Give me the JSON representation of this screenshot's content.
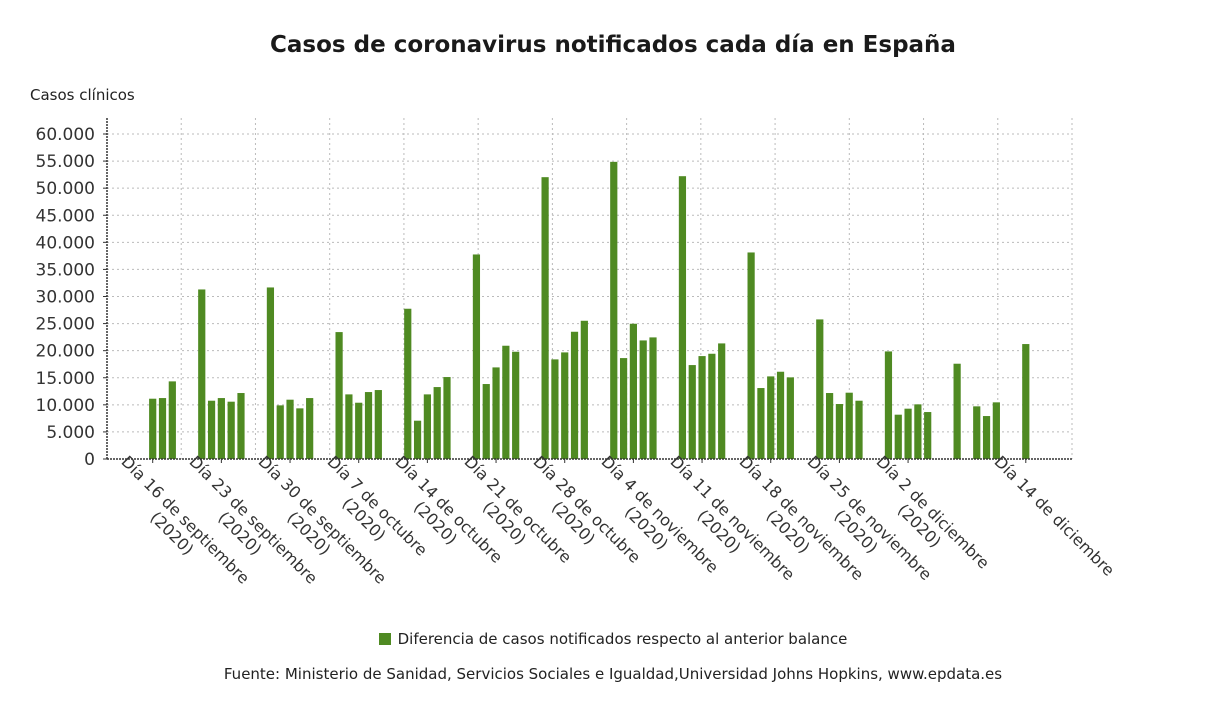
{
  "chart_data": {
    "type": "bar",
    "title": "Casos de coronavirus notificados cada día en España",
    "ylabel": "Casos clínicos",
    "xlabel": "",
    "ylim": [
      0,
      60000
    ],
    "yticks": [
      "0",
      "5.000",
      "10.000",
      "15.000",
      "20.000",
      "25.000",
      "30.000",
      "35.000",
      "40.000",
      "45.000",
      "50.000",
      "55.000",
      "60.000"
    ],
    "grid": true,
    "legend_position": "bottom",
    "bar_color": "#4f8a22",
    "x_tick_labels": [
      {
        "date": "2020-09-16",
        "line1": "Día 16 de septiembre",
        "line2": "(2020)"
      },
      {
        "date": "2020-09-23",
        "line1": "Día 23 de septiembre",
        "line2": "(2020)"
      },
      {
        "date": "2020-09-30",
        "line1": "Día 30 de septiembre",
        "line2": "(2020)"
      },
      {
        "date": "2020-10-07",
        "line1": "Día 7 de octubre",
        "line2": "(2020)"
      },
      {
        "date": "2020-10-14",
        "line1": "Día 14 de octubre",
        "line2": "(2020)"
      },
      {
        "date": "2020-10-21",
        "line1": "Día 21 de octubre",
        "line2": "(2020)"
      },
      {
        "date": "2020-10-28",
        "line1": "Día 28 de octubre",
        "line2": "(2020)"
      },
      {
        "date": "2020-11-04",
        "line1": "Día 4 de noviembre",
        "line2": "(2020)"
      },
      {
        "date": "2020-11-11",
        "line1": "Día 11 de noviembre",
        "line2": "(2020)"
      },
      {
        "date": "2020-11-18",
        "line1": "Día 18 de noviembre",
        "line2": "(2020)"
      },
      {
        "date": "2020-11-25",
        "line1": "Día 25 de noviembre",
        "line2": "(2020)"
      },
      {
        "date": "2020-12-02",
        "line1": "Día 2 de diciembre",
        "line2": "(2020)"
      },
      {
        "date": "2020-12-14",
        "line1": "Día 14 de diciembre",
        "line2": ""
      }
    ],
    "series": [
      {
        "name": "Diferencia de casos notificados respecto al anterior balance",
        "x": [
          "2020-09-16",
          "2020-09-17",
          "2020-09-18",
          "2020-09-21",
          "2020-09-22",
          "2020-09-23",
          "2020-09-24",
          "2020-09-25",
          "2020-09-28",
          "2020-09-29",
          "2020-09-30",
          "2020-10-01",
          "2020-10-02",
          "2020-10-05",
          "2020-10-06",
          "2020-10-07",
          "2020-10-08",
          "2020-10-09",
          "2020-10-12",
          "2020-10-13",
          "2020-10-14",
          "2020-10-15",
          "2020-10-16",
          "2020-10-19",
          "2020-10-20",
          "2020-10-21",
          "2020-10-22",
          "2020-10-23",
          "2020-10-26",
          "2020-10-27",
          "2020-10-28",
          "2020-10-29",
          "2020-10-30",
          "2020-11-02",
          "2020-11-03",
          "2020-11-04",
          "2020-11-05",
          "2020-11-06",
          "2020-11-09",
          "2020-11-10",
          "2020-11-11",
          "2020-11-12",
          "2020-11-13",
          "2020-11-16",
          "2020-11-17",
          "2020-11-18",
          "2020-11-19",
          "2020-11-20",
          "2020-11-23",
          "2020-11-24",
          "2020-11-25",
          "2020-11-26",
          "2020-11-27",
          "2020-11-30",
          "2020-12-01",
          "2020-12-02",
          "2020-12-03",
          "2020-12-04",
          "2020-12-07",
          "2020-12-09",
          "2020-12-10",
          "2020-12-11",
          "2020-12-14"
        ],
        "values": [
          11130,
          11250,
          14330,
          31300,
          10760,
          11250,
          10580,
          12180,
          31670,
          9900,
          10950,
          9350,
          11250,
          23430,
          11930,
          10390,
          12360,
          12730,
          27740,
          7070,
          11930,
          13280,
          15130,
          37760,
          13840,
          16910,
          20910,
          19800,
          52030,
          18390,
          19680,
          23490,
          25520,
          54860,
          18630,
          24970,
          21890,
          22450,
          52210,
          17340,
          19000,
          19430,
          21340,
          38130,
          13100,
          15250,
          16110,
          15070,
          25770,
          12180,
          10150,
          12240,
          10760,
          19860,
          8180,
          9290,
          10090,
          8670,
          17590,
          9720,
          7930,
          10460,
          21220
        ]
      }
    ]
  },
  "source": "Fuente: Ministerio de Sanidad, Servicios Sociales e Igualdad,Universidad Johns Hopkins, www.epdata.es"
}
